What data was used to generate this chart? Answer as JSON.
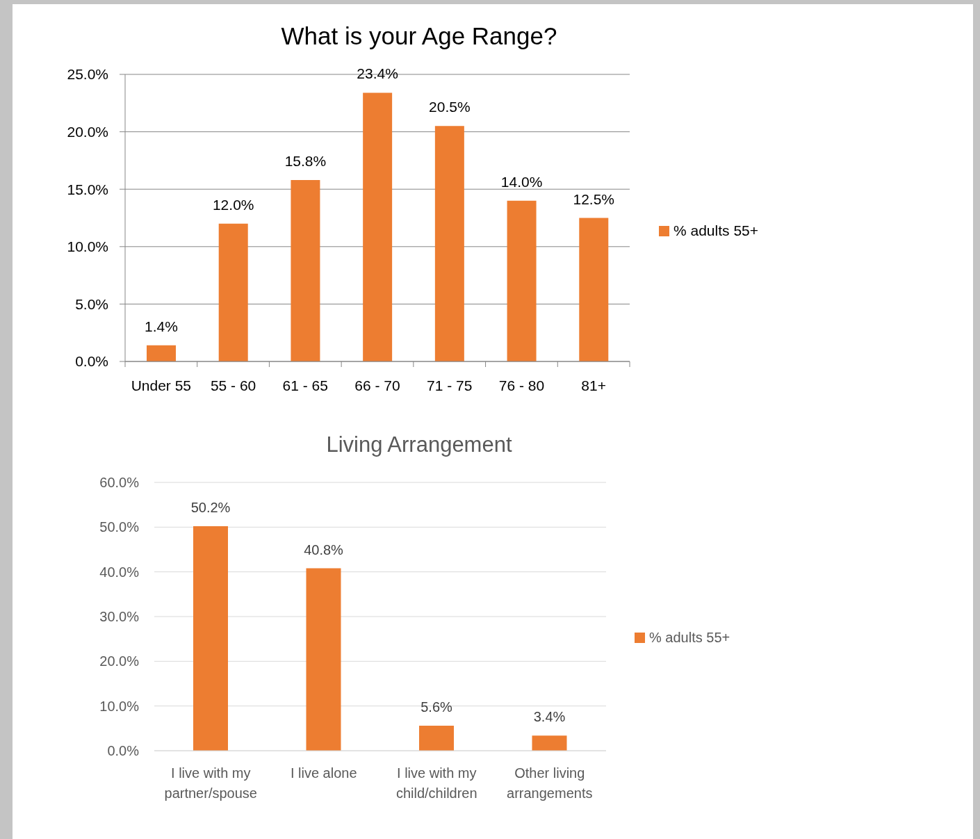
{
  "chart_data": [
    {
      "type": "bar",
      "title": "What is your Age Range?",
      "categories": [
        "Under 55",
        "55 - 60",
        "61 - 65",
        "66 - 70",
        "71 - 75",
        "76 - 80",
        "81+"
      ],
      "series": [
        {
          "name": "% adults 55+",
          "color": "#ed7d31",
          "values": [
            1.4,
            12.0,
            15.8,
            23.4,
            20.5,
            14.0,
            12.5
          ],
          "value_labels": [
            "1.4%",
            "12.0%",
            "15.8%",
            "23.4%",
            "20.5%",
            "14.0%",
            "12.5%"
          ]
        }
      ],
      "ylim": [
        0,
        25
      ],
      "yticks": [
        {
          "value": 0,
          "label": "0.0%"
        },
        {
          "value": 5,
          "label": "5.0%"
        },
        {
          "value": 10,
          "label": "10.0%"
        },
        {
          "value": 15,
          "label": "15.0%"
        },
        {
          "value": 20,
          "label": "20.0%"
        },
        {
          "value": 25,
          "label": "25.0%"
        }
      ],
      "grid": "y",
      "legend": "right"
    },
    {
      "type": "bar",
      "title": "Living Arrangement",
      "categories": [
        "I live with my partner/spouse",
        "I live alone",
        "I live with my child/children",
        "Other living arrangements"
      ],
      "series": [
        {
          "name": "% adults 55+",
          "color": "#ed7d31",
          "values": [
            50.2,
            40.8,
            5.6,
            3.4
          ],
          "value_labels": [
            "50.2%",
            "40.8%",
            "5.6%",
            "3.4%"
          ]
        }
      ],
      "ylim": [
        0,
        60
      ],
      "yticks": [
        {
          "value": 0,
          "label": "0.0%"
        },
        {
          "value": 10,
          "label": "10.0%"
        },
        {
          "value": 20,
          "label": "20.0%"
        },
        {
          "value": 30,
          "label": "30.0%"
        },
        {
          "value": 40,
          "label": "40.0%"
        },
        {
          "value": 50,
          "label": "50.0%"
        },
        {
          "value": 60,
          "label": "60.0%"
        }
      ],
      "grid": "y",
      "legend": "right"
    }
  ]
}
